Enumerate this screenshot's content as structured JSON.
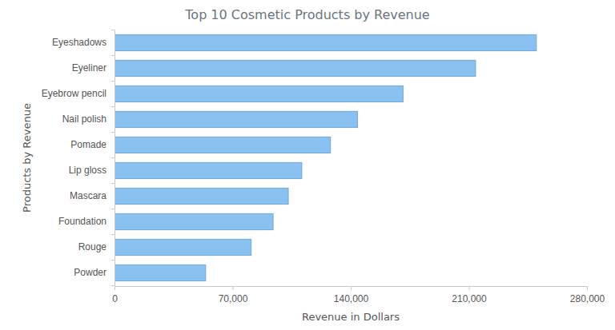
{
  "chart_data": {
    "type": "bar",
    "orientation": "horizontal",
    "title": "Top 10 Cosmetic Products by Revenue",
    "x_label": "Revenue in Dollars",
    "y_label": "Products by Revenue",
    "categories": [
      "Eyeshadows",
      "Eyeliner",
      "Eyebrow pencil",
      "Nail polish",
      "Pomade",
      "Lip gloss",
      "Mascara",
      "Foundation",
      "Rouge",
      "Powder"
    ],
    "values": [
      250000,
      214000,
      171000,
      144000,
      128000,
      111000,
      103000,
      94000,
      81000,
      54000
    ],
    "color": "#88c1f2",
    "xlim": [
      0,
      280000
    ],
    "xticks": [
      0,
      {
        "value": 70000,
        "label": "70,000"
      },
      {
        "value": 140000,
        "label": "140,000"
      },
      {
        "value": 210000,
        "label": "210,000"
      },
      {
        "value": 280000,
        "label": "280,000"
      }
    ],
    "grid": false
  }
}
